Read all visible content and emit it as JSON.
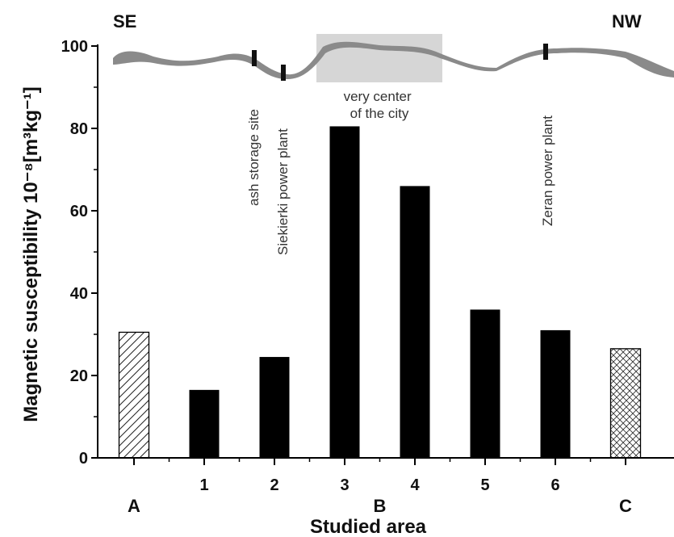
{
  "chart_data": {
    "type": "bar",
    "title": "",
    "xlabel": "Studied area",
    "ylabel": "Magnetic susceptibility 10⁻⁸[m³kg⁻¹]",
    "ylim": [
      0,
      100
    ],
    "yticks": [
      "0",
      "20",
      "40",
      "60",
      "80",
      "100"
    ],
    "categories": [
      "A",
      "1",
      "2",
      "3",
      "4",
      "5",
      "6",
      "C"
    ],
    "values": [
      30.5,
      16.5,
      24.5,
      80.5,
      66,
      36,
      31,
      26.5
    ],
    "bar_styles": [
      "hatch-diagonal",
      "solid",
      "solid",
      "solid",
      "solid",
      "solid",
      "solid",
      "hatch-cross"
    ],
    "group_labels": [
      "A",
      "B",
      "C"
    ],
    "grid": false,
    "corner_labels": {
      "left": "SE",
      "right": "NW"
    },
    "annotations": [
      {
        "text": "ash storage site"
      },
      {
        "text": "Siekierki power plant"
      },
      {
        "text": "very center\nof the city"
      },
      {
        "text": "Zeran power plant"
      }
    ],
    "colors": {
      "bar": "#000000",
      "profile": "#8a8a8a",
      "highlight": "#d6d6d6"
    }
  }
}
